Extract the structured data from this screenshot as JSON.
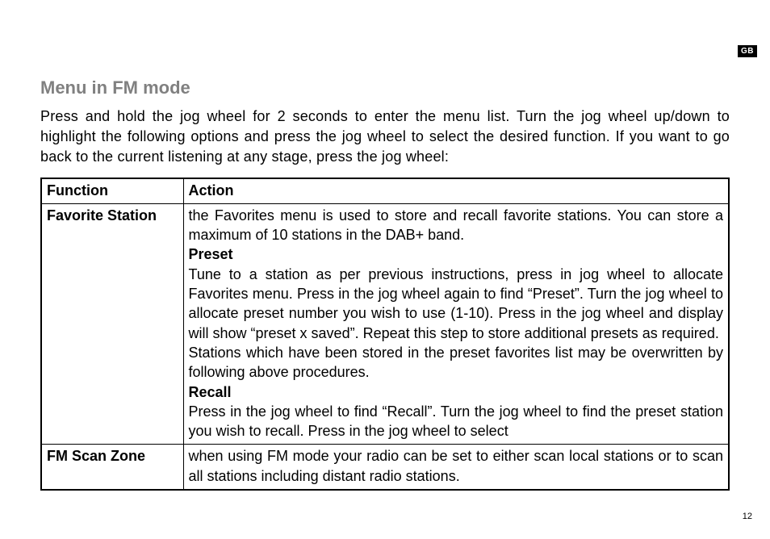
{
  "lang_badge": "GB",
  "heading": "Menu in FM mode",
  "intro": "Press and hold the jog wheel for 2 seconds to enter the menu list. Turn the jog wheel up/down to highlight the following options and press the jog wheel to select the desired function. If you want to go back to the current listening at any stage, press the jog wheel:",
  "table": {
    "headers": {
      "function": "Function",
      "action": "Action"
    },
    "rows": [
      {
        "function": "Favorite Station",
        "action": {
          "p1": "the Favorites menu is used to store and recall favorite stations. You can store a maximum of 10 stations in the DAB+ band.",
          "sub1_title": "Preset",
          "sub1_body": "Tune to a station as per previous instructions, press in jog wheel to allocate Favorites menu. Press in the jog wheel again to find “Preset”. Turn the jog wheel to allocate preset number you wish to use (1-10). Press in the jog wheel and display will show “preset x saved”. Repeat this step to store additional presets as required.",
          "sub1_body2": "Stations which have been stored in the preset favorites list may be overwritten by following above procedures.",
          "sub2_title": "Recall",
          "sub2_body": "Press in the jog wheel to find “Recall”. Turn the jog wheel to find the preset station you wish to recall. Press in the jog wheel to select"
        }
      },
      {
        "function": "FM Scan Zone",
        "action": {
          "p1": "when using FM mode your radio can be set to either scan local stations or to scan all stations including distant radio stations."
        }
      }
    ]
  },
  "page_number": "12"
}
